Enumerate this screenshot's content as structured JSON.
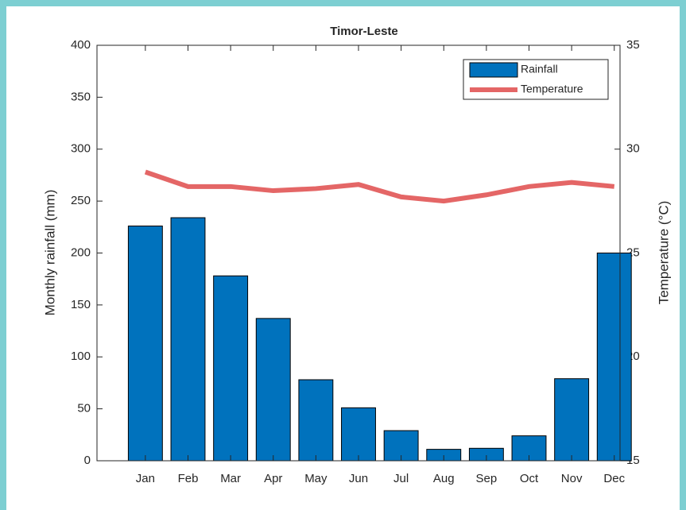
{
  "chart_data": {
    "type": "bar-line",
    "title": "Timor-Leste",
    "ylabel": "Monthly rainfall (mm)",
    "y2label": "Temperature (°C)",
    "categories": [
      "Jan",
      "Feb",
      "Mar",
      "Apr",
      "May",
      "Jun",
      "Jul",
      "Aug",
      "Sep",
      "Oct",
      "Nov",
      "Dec"
    ],
    "series": [
      {
        "name": "Rainfall",
        "type": "bar",
        "color": "#0072bd",
        "values": [
          226,
          234,
          178,
          137,
          78,
          51,
          29,
          11,
          12,
          24,
          79,
          200
        ]
      },
      {
        "name": "Temperature",
        "type": "line",
        "axis": "y2",
        "color": "#e46666",
        "values": [
          28.9,
          28.2,
          28.2,
          28.0,
          28.1,
          28.3,
          27.7,
          27.5,
          27.8,
          28.2,
          28.4,
          28.2
        ]
      }
    ],
    "ylim": [
      0,
      400
    ],
    "yticks": [
      0,
      50,
      100,
      150,
      200,
      250,
      300,
      350,
      400
    ],
    "y2lim": [
      15,
      35
    ],
    "y2ticks": [
      15,
      20,
      25,
      30,
      35
    ],
    "legend": "top-right"
  }
}
